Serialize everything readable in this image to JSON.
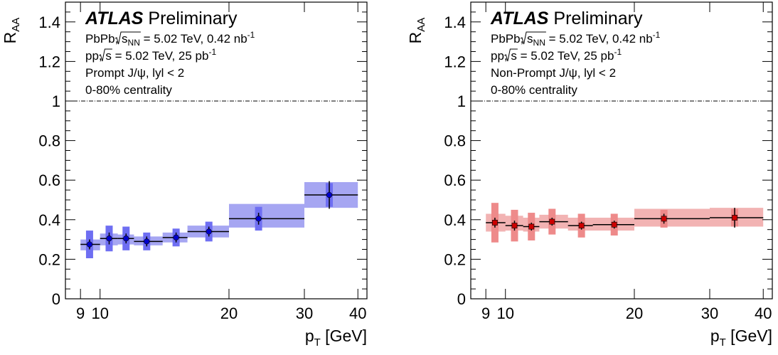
{
  "chart_data": [
    {
      "type": "scatter",
      "experiment": "ATLAS",
      "status": "Preliminary",
      "ylabel": "R",
      "ylabel_sub": "AA",
      "xlabel": "p",
      "xlabel_sub": "T",
      "xlabel_unit": "[GeV]",
      "xscale": "log",
      "xlim": [
        8.3,
        42
      ],
      "ylim": [
        0,
        1.5
      ],
      "x_ticks": [
        9,
        10,
        20,
        30,
        40
      ],
      "y_ticks": [
        0,
        0.2,
        0.4,
        0.6,
        0.8,
        1,
        1.2,
        1.4
      ],
      "y_tick_labels": [
        "0",
        "0.2",
        "0.4",
        "0.6",
        "0.8",
        "1",
        "1.2",
        "1.4"
      ],
      "reference_line": 1,
      "legend_lines": [
        {
          "pre": "PbPb, ",
          "rad": "s",
          "rad_sub": "NN",
          "post": " = 5.02 TeV, 0.42 nb",
          "sup": "-1"
        },
        {
          "pre": "pp, ",
          "rad": "s",
          "rad_sub": "",
          "post": " = 5.02 TeV, 25 pb",
          "sup": "-1"
        },
        {
          "pre": "Prompt J/ψ, lyl < 2",
          "rad": "",
          "rad_sub": "",
          "post": "",
          "sup": ""
        },
        {
          "pre": "0-80% centrality",
          "rad": "",
          "rad_sub": "",
          "post": "",
          "sup": ""
        }
      ],
      "color": "#0000cc",
      "band_color": "#a6a6f2",
      "sys_color": "#6e6ef2",
      "marker": "circle",
      "series": [
        {
          "x": [
            9.45,
            10.5,
            11.5,
            12.85,
            15.05,
            17.95,
            23.45,
            34.3
          ],
          "y": [
            0.275,
            0.305,
            0.305,
            0.29,
            0.31,
            0.34,
            0.405,
            0.525
          ],
          "x_low": [
            9,
            10,
            11,
            12,
            14,
            16,
            20,
            30
          ],
          "x_high": [
            10,
            11,
            12,
            14,
            16,
            20,
            30,
            40
          ],
          "stat_err": [
            0.025,
            0.03,
            0.025,
            0.025,
            0.025,
            0.025,
            0.03,
            0.07
          ],
          "sys_err": [
            0.07,
            0.065,
            0.06,
            0.045,
            0.045,
            0.05,
            0.06,
            0.06
          ],
          "band_low": [
            0.245,
            0.27,
            0.275,
            0.27,
            0.285,
            0.31,
            0.36,
            0.46
          ],
          "band_high": [
            0.3,
            0.33,
            0.325,
            0.315,
            0.335,
            0.37,
            0.48,
            0.59
          ]
        }
      ]
    },
    {
      "type": "scatter",
      "experiment": "ATLAS",
      "status": "Preliminary",
      "ylabel": "R",
      "ylabel_sub": "AA",
      "xlabel": "p",
      "xlabel_sub": "T",
      "xlabel_unit": "[GeV]",
      "xscale": "log",
      "xlim": [
        8.3,
        42
      ],
      "ylim": [
        0,
        1.5
      ],
      "x_ticks": [
        9,
        10,
        20,
        30,
        40
      ],
      "y_ticks": [
        0,
        0.2,
        0.4,
        0.6,
        0.8,
        1,
        1.2,
        1.4
      ],
      "y_tick_labels": [
        "0",
        "0.2",
        "0.4",
        "0.6",
        "0.8",
        "1",
        "1.2",
        "1.4"
      ],
      "reference_line": 1,
      "legend_lines": [
        {
          "pre": "PbPb, ",
          "rad": "s",
          "rad_sub": "NN",
          "post": " = 5.02 TeV, 0.42 nb",
          "sup": "-1"
        },
        {
          "pre": "pp, ",
          "rad": "s",
          "rad_sub": "",
          "post": " = 5.02 TeV, 25 pb",
          "sup": "-1"
        },
        {
          "pre": "Non-Prompt J/ψ, lyl < 2",
          "rad": "",
          "rad_sub": "",
          "post": "",
          "sup": ""
        },
        {
          "pre": "0-80% centrality",
          "rad": "",
          "rad_sub": "",
          "post": "",
          "sup": ""
        }
      ],
      "color": "#cc0000",
      "band_color": "#f2b3b3",
      "sys_color": "#ee8a8a",
      "marker": "square",
      "series": [
        {
          "x": [
            9.45,
            10.5,
            11.5,
            12.85,
            15.05,
            17.95,
            23.45,
            34.3
          ],
          "y": [
            0.385,
            0.37,
            0.365,
            0.39,
            0.37,
            0.375,
            0.405,
            0.41
          ],
          "x_low": [
            9,
            10,
            11,
            12,
            14,
            16,
            20,
            30
          ],
          "x_high": [
            10,
            11,
            12,
            14,
            16,
            20,
            30,
            40
          ],
          "stat_err": [
            0.025,
            0.025,
            0.02,
            0.02,
            0.02,
            0.02,
            0.025,
            0.05
          ],
          "sys_err": [
            0.1,
            0.08,
            0.07,
            0.065,
            0.06,
            0.055,
            0.045,
            0.045
          ],
          "band_low": [
            0.34,
            0.345,
            0.34,
            0.355,
            0.345,
            0.345,
            0.365,
            0.365
          ],
          "band_high": [
            0.43,
            0.42,
            0.41,
            0.425,
            0.41,
            0.41,
            0.455,
            0.46
          ]
        }
      ]
    }
  ]
}
